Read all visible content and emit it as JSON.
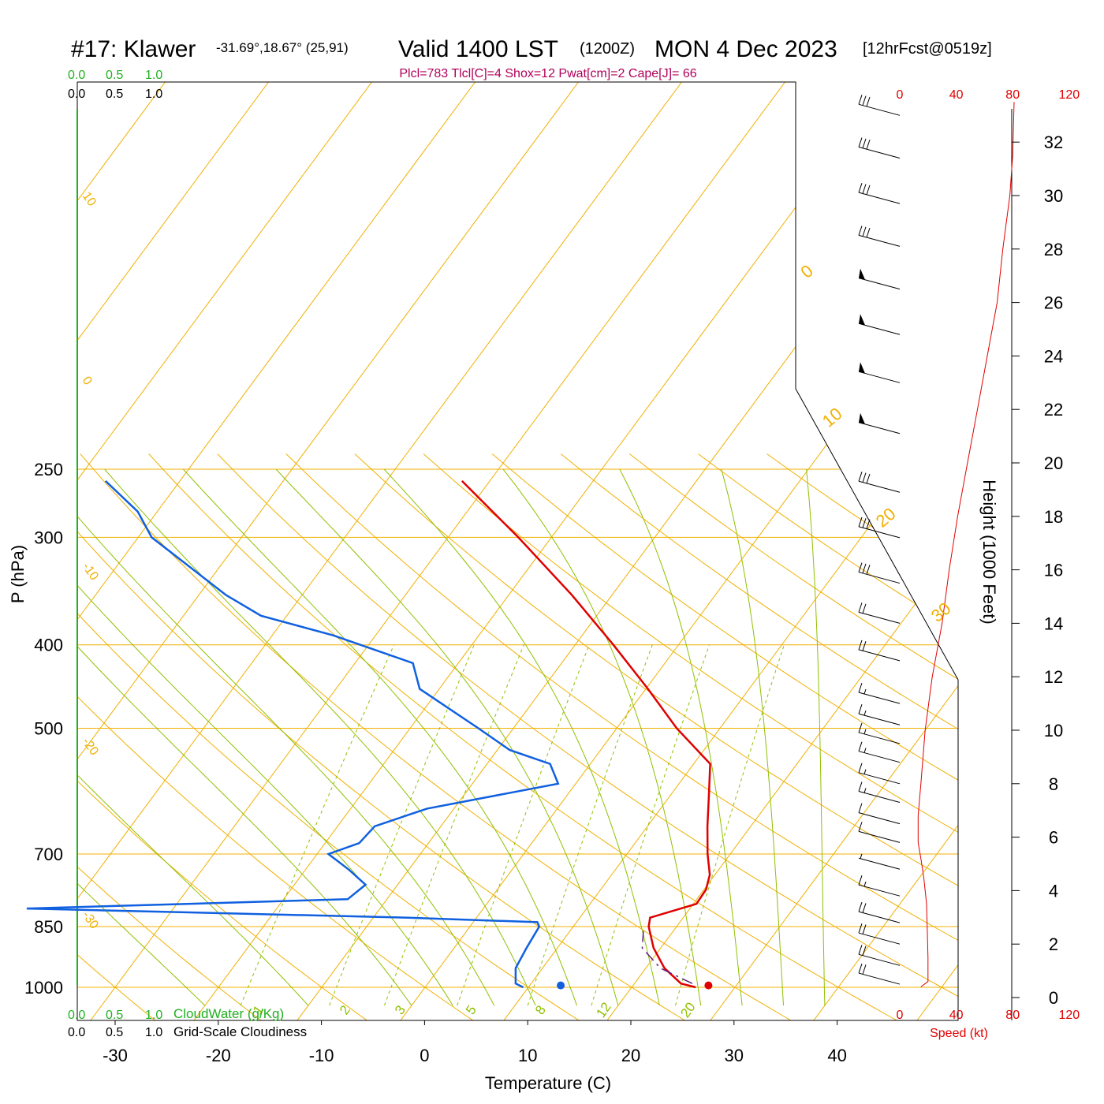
{
  "header": {
    "station": "#17: Klawer",
    "coords": "-31.69°,18.67° (25,91)",
    "valid": "Valid 1400 LST",
    "utc": "(1200Z)",
    "date": "MON 4 Dec 2023",
    "forecast": "[12hrFcst@0519z]",
    "indices": "Plcl=783 Tlcl[C]=4 Shox=12 Pwat[cm]=2 Cape[J]= 66"
  },
  "colors": {
    "temperature": "#e00000",
    "dewpoint": "#1060e0",
    "isotherm_isobar": "#f0b000",
    "dry_adiabat": "#f0b000",
    "moist_adiabat": "#90c000",
    "mixing_ratio": "#90c000",
    "cloud_green": "#20b020",
    "wind_speed": "#e00000",
    "parcel": "#602080"
  },
  "chart_data": {
    "type": "skew-t",
    "xlabel": "Temperature (C)",
    "ylabel": "P (hPa)",
    "y2label": "Height (1000 Feet)",
    "x_ticks": [
      "-30",
      "-20",
      "-10",
      "0",
      "10",
      "20",
      "30",
      "40"
    ],
    "p_ticks": [
      "250",
      "300",
      "400",
      "500",
      "700",
      "850",
      "1000"
    ],
    "height_ticks": [
      "32",
      "30",
      "28",
      "26",
      "24",
      "22",
      "20",
      "18",
      "16",
      "14",
      "12",
      "10",
      "8",
      "6",
      "4",
      "2",
      "0"
    ],
    "speed_ticks": [
      "0",
      "40",
      "80",
      "120"
    ],
    "speed_label": "Speed (kt)",
    "cloud_ticks": [
      "0.0",
      "0.5",
      "1.0"
    ],
    "cloudwater_label": "CloudWater (g/Kg)",
    "cloudiness_label": "Grid-Scale Cloudiness",
    "mixing_ratio_labels": [
      "1",
      "2",
      "3",
      "5",
      "8",
      "12",
      "20"
    ],
    "dry_adiabat_labels": [
      "10",
      "0",
      "-10",
      "-20",
      "-30"
    ],
    "moist_adiabat_labels": [
      "0",
      "10",
      "20",
      "30"
    ],
    "temperature_profile": [
      {
        "p": 1000,
        "t": 26.2
      },
      {
        "p": 990,
        "t": 24.5
      },
      {
        "p": 950,
        "t": 21.8
      },
      {
        "p": 900,
        "t": 19.3
      },
      {
        "p": 850,
        "t": 17.3
      },
      {
        "p": 830,
        "t": 16.8
      },
      {
        "p": 800,
        "t": 20.3
      },
      {
        "p": 770,
        "t": 20.2
      },
      {
        "p": 740,
        "t": 19.5
      },
      {
        "p": 700,
        "t": 17.8
      },
      {
        "p": 650,
        "t": 15.8
      },
      {
        "p": 600,
        "t": 13.8
      },
      {
        "p": 550,
        "t": 11.6
      },
      {
        "p": 500,
        "t": 5.8
      },
      {
        "p": 450,
        "t": 0.2
      },
      {
        "p": 400,
        "t": -6.3
      },
      {
        "p": 350,
        "t": -13.9
      },
      {
        "p": 300,
        "t": -23.2
      },
      {
        "p": 258,
        "t": -32.7
      }
    ],
    "dewpoint_profile": [
      {
        "p": 1000,
        "t": 9.5
      },
      {
        "p": 990,
        "t": 8.5
      },
      {
        "p": 950,
        "t": 7.4
      },
      {
        "p": 900,
        "t": 7.0
      },
      {
        "p": 850,
        "t": 6.7
      },
      {
        "p": 840,
        "t": 6.2
      },
      {
        "p": 830,
        "t": -6.6
      },
      {
        "p": 810,
        "t": -44.2
      },
      {
        "p": 790,
        "t": -13.8
      },
      {
        "p": 760,
        "t": -13.1
      },
      {
        "p": 730,
        "t": -15.8
      },
      {
        "p": 700,
        "t": -18.9
      },
      {
        "p": 680,
        "t": -16.7
      },
      {
        "p": 650,
        "t": -16.4
      },
      {
        "p": 620,
        "t": -12.6
      },
      {
        "p": 580,
        "t": -1.7
      },
      {
        "p": 550,
        "t": -3.9
      },
      {
        "p": 530,
        "t": -8.8
      },
      {
        "p": 500,
        "t": -13.4
      },
      {
        "p": 450,
        "t": -21.9
      },
      {
        "p": 420,
        "t": -24.4
      },
      {
        "p": 390,
        "t": -34.1
      },
      {
        "p": 370,
        "t": -42.5
      },
      {
        "p": 350,
        "t": -47.4
      },
      {
        "p": 300,
        "t": -58.7
      },
      {
        "p": 280,
        "t": -61.9
      },
      {
        "p": 258,
        "t": -67.2
      }
    ],
    "parcel_profile": [
      {
        "p": 990,
        "t": 25.6
      },
      {
        "p": 950,
        "t": 21.4
      },
      {
        "p": 900,
        "t": 18.2
      },
      {
        "p": 860,
        "t": 17.1
      }
    ],
    "surface_temperature": 27.3,
    "surface_dewpoint": 13.0,
    "surface_pressure": 995,
    "wind_speed_profile": [
      {
        "h": 0.4,
        "v": 15
      },
      {
        "h": 0.6,
        "v": 20
      },
      {
        "h": 1.5,
        "v": 20
      },
      {
        "h": 3.5,
        "v": 19
      },
      {
        "h": 4.5,
        "v": 17
      },
      {
        "h": 5.2,
        "v": 15
      },
      {
        "h": 5.8,
        "v": 13
      },
      {
        "h": 6.8,
        "v": 13
      },
      {
        "h": 8.0,
        "v": 15
      },
      {
        "h": 10.0,
        "v": 18
      },
      {
        "h": 12.0,
        "v": 23
      },
      {
        "h": 14.0,
        "v": 30
      },
      {
        "h": 16.0,
        "v": 35
      },
      {
        "h": 18.0,
        "v": 41
      },
      {
        "h": 20.0,
        "v": 48
      },
      {
        "h": 22.0,
        "v": 55
      },
      {
        "h": 24.0,
        "v": 62
      },
      {
        "h": 26.0,
        "v": 69
      },
      {
        "h": 28.0,
        "v": 73
      },
      {
        "h": 30.0,
        "v": 78
      },
      {
        "h": 31.5,
        "v": 80
      },
      {
        "h": 33.5,
        "v": 81
      }
    ],
    "wind_barbs": [
      {
        "h": 33.0,
        "kt": 30
      },
      {
        "h": 31.4,
        "kt": 30
      },
      {
        "h": 29.7,
        "kt": 30
      },
      {
        "h": 28.1,
        "kt": 30
      },
      {
        "h": 26.5,
        "kt": 50
      },
      {
        "h": 24.8,
        "kt": 50
      },
      {
        "h": 23.0,
        "kt": 50
      },
      {
        "h": 21.1,
        "kt": 50
      },
      {
        "h": 18.9,
        "kt": 30
      },
      {
        "h": 17.2,
        "kt": 30
      },
      {
        "h": 15.5,
        "kt": 30
      },
      {
        "h": 14.0,
        "kt": 20
      },
      {
        "h": 12.6,
        "kt": 20
      },
      {
        "h": 11.0,
        "kt": 15
      },
      {
        "h": 10.2,
        "kt": 15
      },
      {
        "h": 9.5,
        "kt": 15
      },
      {
        "h": 8.8,
        "kt": 15
      },
      {
        "h": 8.0,
        "kt": 15
      },
      {
        "h": 7.3,
        "kt": 15
      },
      {
        "h": 6.5,
        "kt": 10
      },
      {
        "h": 5.8,
        "kt": 10
      },
      {
        "h": 4.8,
        "kt": 5
      },
      {
        "h": 3.8,
        "kt": 15
      },
      {
        "h": 2.8,
        "kt": 20
      },
      {
        "h": 2.0,
        "kt": 20
      },
      {
        "h": 1.2,
        "kt": 20
      },
      {
        "h": 0.5,
        "kt": 20
      }
    ]
  }
}
